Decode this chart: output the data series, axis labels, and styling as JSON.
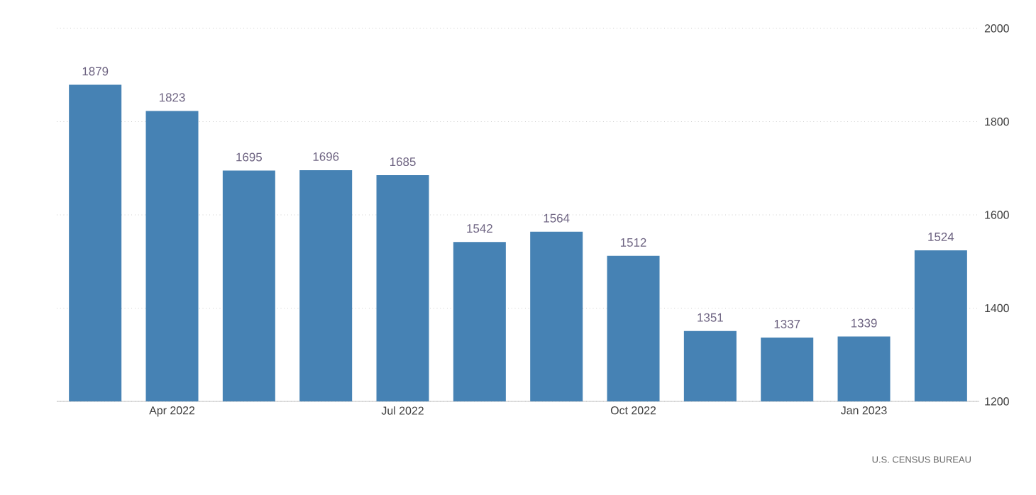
{
  "chart_data": {
    "type": "bar",
    "categories": [
      null,
      "Apr 2022",
      null,
      null,
      "Jul 2022",
      null,
      null,
      "Oct 2022",
      null,
      null,
      "Jan 2023",
      null
    ],
    "values": [
      1879,
      1823,
      1695,
      1696,
      1685,
      1542,
      1564,
      1512,
      1351,
      1337,
      1339,
      1524
    ],
    "color": "#4682b4",
    "ylim": [
      1200,
      2000
    ],
    "yticks": [
      1200,
      1400,
      1600,
      1800,
      2000
    ],
    "grid": "y",
    "data_labels": true,
    "annotations": [
      "U.S. CENSUS BUREAU"
    ]
  }
}
